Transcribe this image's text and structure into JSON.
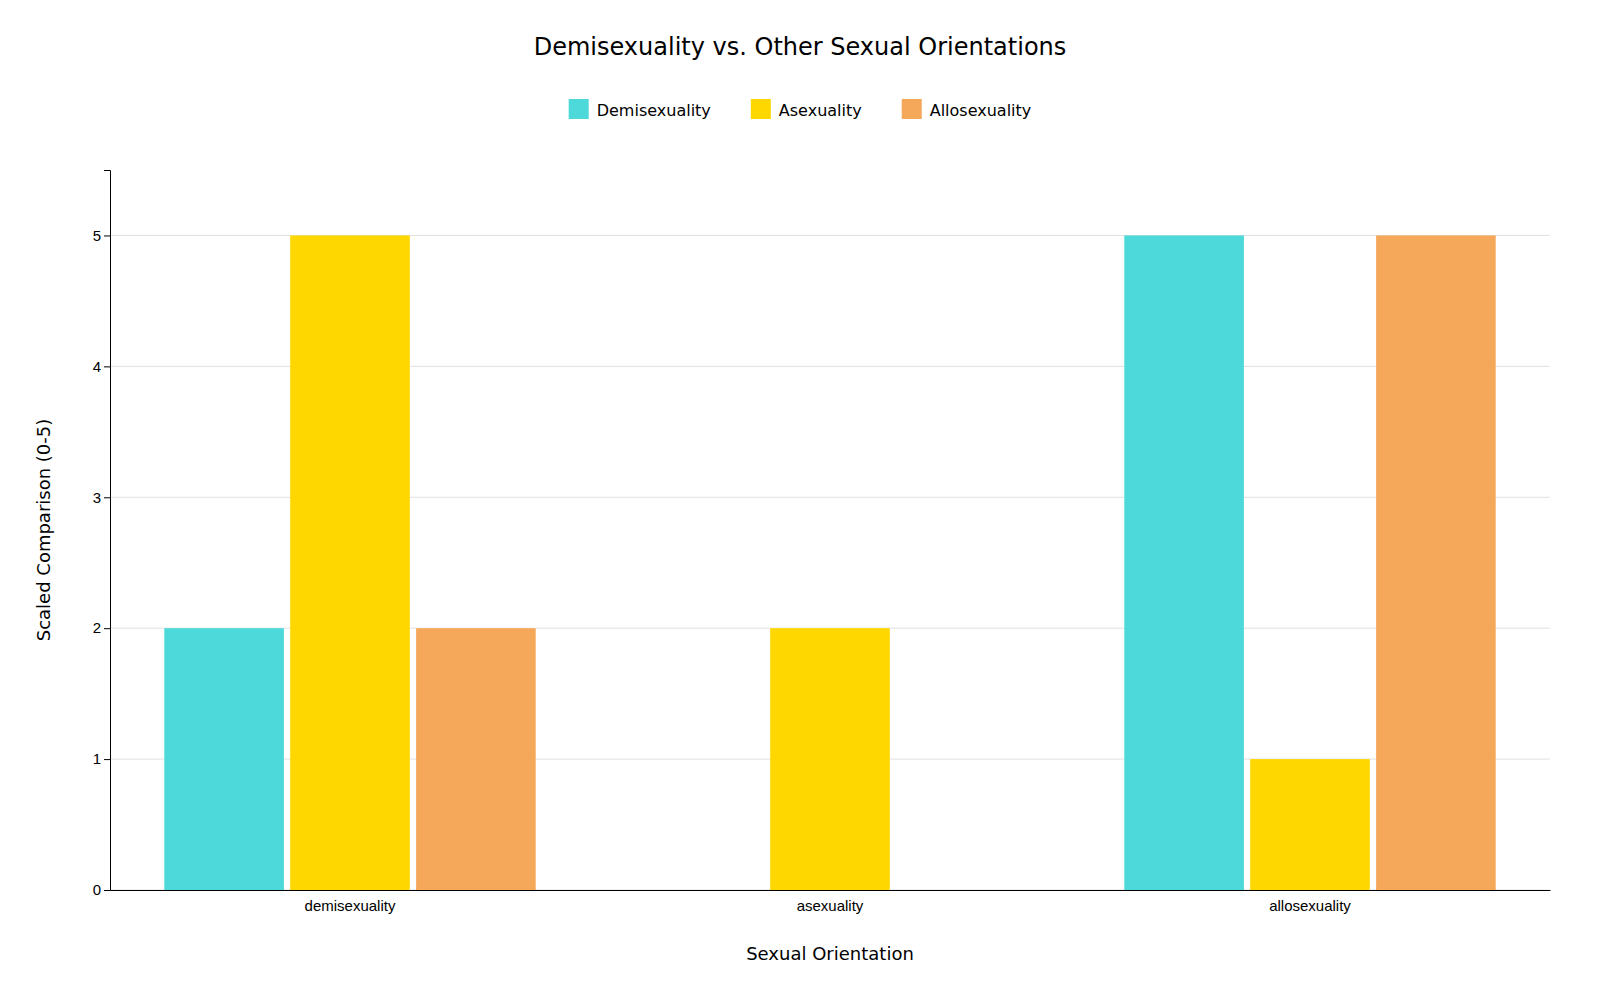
{
  "chart_data": {
    "type": "bar",
    "title": "Demisexuality vs. Other Sexual Orientations",
    "xlabel": "Sexual Orientation",
    "ylabel": "Scaled Comparison (0-5)",
    "categories": [
      "demisexuality",
      "asexuality",
      "allosexuality"
    ],
    "series": [
      {
        "name": "Demisexuality",
        "color": "#4DD9D9",
        "values": [
          2,
          0,
          5
        ]
      },
      {
        "name": "Asexuality",
        "color": "#FFD700",
        "values": [
          5,
          2,
          1
        ]
      },
      {
        "name": "Allosexuality",
        "color": "#F5A85A",
        "values": [
          2,
          0,
          5
        ]
      }
    ],
    "ylim": [
      0,
      5.5
    ],
    "yticks": [
      0,
      1,
      2,
      3,
      4,
      5
    ],
    "grid": true,
    "legend": "top"
  }
}
